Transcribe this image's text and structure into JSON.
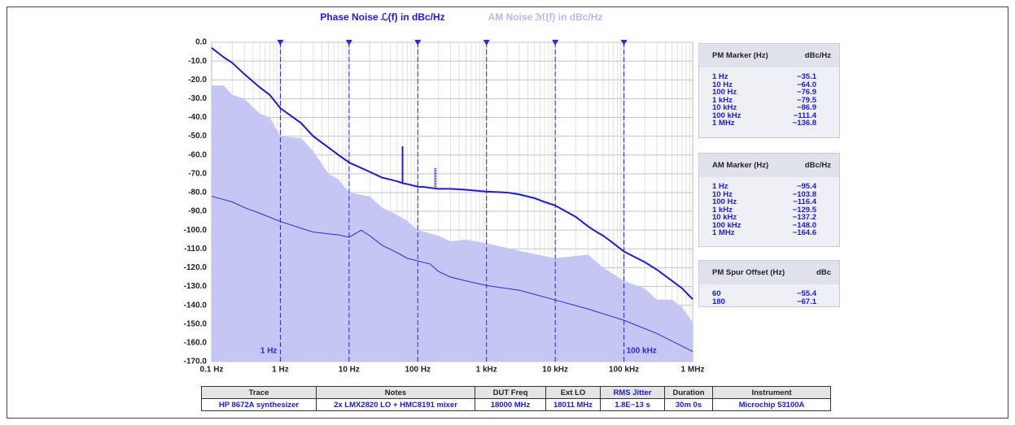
{
  "chart_data": {
    "type": "line",
    "xscale": "log",
    "xlim": [
      0.1,
      1000000
    ],
    "ylim": [
      -170,
      0
    ],
    "xticks": [
      {
        "value": 0.1,
        "label": "0.1 Hz"
      },
      {
        "value": 1,
        "label": "1 Hz"
      },
      {
        "value": 10,
        "label": "10 Hz"
      },
      {
        "value": 100,
        "label": "100 Hz"
      },
      {
        "value": 1000,
        "label": "1 kHz"
      },
      {
        "value": 10000,
        "label": "10 kHz"
      },
      {
        "value": 100000,
        "label": "100 kHz"
      },
      {
        "value": 1000000,
        "label": "1 MHz"
      }
    ],
    "yticks": [
      {
        "value": 0,
        "label": "0.0"
      },
      {
        "value": -10,
        "label": "-10.0"
      },
      {
        "value": -20,
        "label": "-20.0"
      },
      {
        "value": -30,
        "label": "-30.0"
      },
      {
        "value": -40,
        "label": "-40.0"
      },
      {
        "value": -50,
        "label": "-50.0"
      },
      {
        "value": -60,
        "label": "-60.0"
      },
      {
        "value": -70,
        "label": "-70.0"
      },
      {
        "value": -80,
        "label": "-80.0"
      },
      {
        "value": -90,
        "label": "-90.0"
      },
      {
        "value": -100,
        "label": "-100.0"
      },
      {
        "value": -110,
        "label": "-110.0"
      },
      {
        "value": -120,
        "label": "-120.0"
      },
      {
        "value": -130,
        "label": "-130.0"
      },
      {
        "value": -140,
        "label": "-140.0"
      },
      {
        "value": -150,
        "label": "-150.0"
      },
      {
        "value": -160,
        "label": "-160.0"
      },
      {
        "value": -170,
        "label": "-170.0"
      }
    ],
    "grid": true,
    "series": [
      {
        "name": "Phase Noise ℒ(f) in dBc/Hz",
        "color": "#1c1cd6",
        "style": "line",
        "x": [
          0.1,
          0.15,
          0.2,
          0.3,
          0.5,
          0.7,
          1,
          2,
          3,
          5,
          7,
          10,
          20,
          30,
          50,
          60,
          70,
          100,
          120,
          150,
          200,
          300,
          500,
          700,
          1000,
          2000,
          3000,
          5000,
          7000,
          10000,
          20000,
          30000,
          40000,
          50000,
          70000,
          100000,
          200000,
          300000,
          500000,
          700000,
          1000000
        ],
        "values": [
          -3,
          -8,
          -11,
          -17,
          -24,
          -28,
          -35.1,
          -43,
          -50,
          -56,
          -60,
          -64,
          -69,
          -72,
          -74,
          -75,
          -75.5,
          -76.9,
          -77,
          -77.5,
          -78,
          -78,
          -78.5,
          -79,
          -79.5,
          -80,
          -81,
          -83,
          -85,
          -86.9,
          -93,
          -98,
          -101,
          -103,
          -107,
          -111.4,
          -117,
          -121,
          -127,
          -131,
          -136.8
        ]
      },
      {
        "name": "AM Noise ℳ(f) in dBc/Hz",
        "color": "#2a2ad8",
        "style": "line",
        "x": [
          0.1,
          0.2,
          0.3,
          0.5,
          1,
          2,
          3,
          5,
          7,
          10,
          15,
          20,
          30,
          50,
          70,
          100,
          150,
          200,
          300,
          500,
          1000,
          3000,
          10000,
          30000,
          100000,
          300000,
          1000000
        ],
        "values": [
          -82,
          -85,
          -88,
          -91,
          -95.4,
          -99,
          -101,
          -102,
          -102.5,
          -103.8,
          -100,
          -103,
          -108,
          -112,
          -115,
          -116.4,
          -118,
          -122,
          -125,
          -127,
          -129.5,
          -132,
          -137.2,
          -142,
          -148,
          -155,
          -164.6
        ]
      },
      {
        "color": "#c6c6f5",
        "style": "area",
        "x": [
          0.1,
          0.15,
          0.2,
          0.3,
          0.5,
          0.7,
          1,
          2,
          3,
          5,
          7,
          10,
          20,
          30,
          50,
          70,
          100,
          200,
          300,
          500,
          1000,
          3000,
          10000,
          30000,
          50000,
          100000,
          200000,
          300000,
          500000,
          700000,
          1000000
        ],
        "values": [
          -23,
          -23,
          -28,
          -30,
          -38,
          -40,
          -50,
          -51,
          -58,
          -70,
          -73,
          -80,
          -82,
          -88,
          -92,
          -95,
          -100,
          -103,
          -106,
          -105,
          -107,
          -111,
          -115,
          -113,
          -120,
          -127,
          -131,
          -137,
          -137,
          -141,
          -149
        ]
      }
    ],
    "spurs": {
      "x": [
        60,
        180
      ],
      "values": [
        -55.4,
        -67.1
      ]
    },
    "markers": [
      1,
      10,
      100,
      1000,
      10000,
      100000
    ],
    "annotations": [
      "1 Hz",
      "100 kHz"
    ]
  },
  "pm_table": {
    "header": [
      "PM Marker (Hz)",
      "dBc/Hz"
    ],
    "rows": [
      [
        "1 Hz",
        "−35.1"
      ],
      [
        "10 Hz",
        "−64.0"
      ],
      [
        "100 Hz",
        "−76.9"
      ],
      [
        "1 kHz",
        "−79.5"
      ],
      [
        "10 kHz",
        "−86.9"
      ],
      [
        "100 kHz",
        "−111.4"
      ],
      [
        "1 MHz",
        "−136.8"
      ]
    ]
  },
  "am_table": {
    "header": [
      "AM Marker (Hz)",
      "dBc/Hz"
    ],
    "rows": [
      [
        "1 Hz",
        "−95.4"
      ],
      [
        "10 Hz",
        "−103.8"
      ],
      [
        "100 Hz",
        "−116.4"
      ],
      [
        "1 kHz",
        "−129.5"
      ],
      [
        "10 kHz",
        "−137.2"
      ],
      [
        "100 kHz",
        "−148.0"
      ],
      [
        "1 MHz",
        "−164.6"
      ]
    ]
  },
  "spur_table": {
    "header": [
      "PM Spur Offset (Hz)",
      "dBc"
    ],
    "rows": [
      [
        "60",
        "−55.4"
      ],
      [
        "180",
        "−67.1"
      ]
    ]
  },
  "trace_table": {
    "header": [
      "Trace",
      "Notes",
      "DUT Freq",
      "Ext LO",
      "RMS Jitter",
      "Duration",
      "Instrument"
    ],
    "row": [
      "HP 8672A synthesizer",
      "2x LMX2820 LO + HMC8191 mixer",
      "18000 MHz",
      "18011 MHz",
      "1.8E−13 s",
      "30m 0s",
      "Microchip 53100A"
    ]
  }
}
